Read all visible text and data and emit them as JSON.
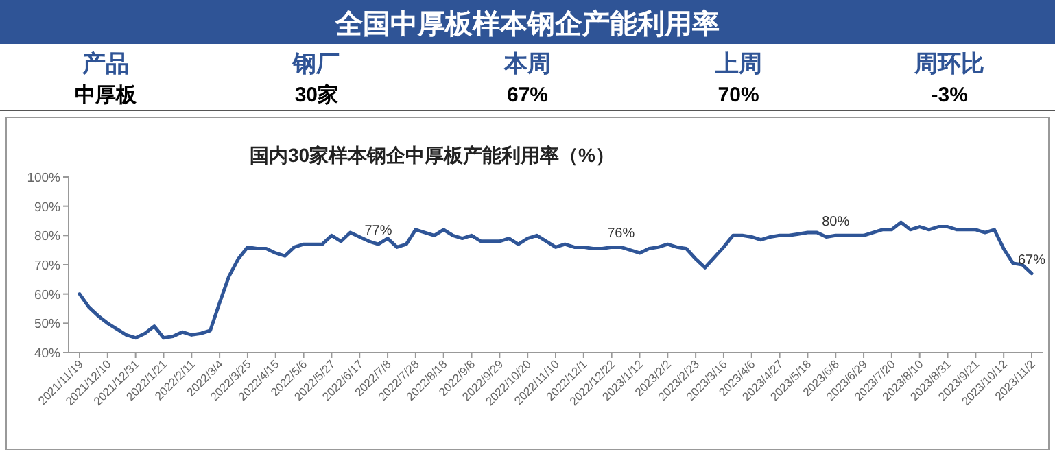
{
  "chart_data": [
    {
      "type": "other",
      "title": "全国中厚板样本钢企产能利用率",
      "annotations": [
        "产品",
        "钢厂",
        "本周",
        "上周",
        "周环比",
        "中厚板",
        "30家",
        "67%",
        "70%",
        "-3%"
      ]
    },
    {
      "type": "line",
      "title": "国内30家样本钢企中厚板产能利用率（%）",
      "categories": [
        "2021/11/19",
        null,
        null,
        "2021/12/10",
        null,
        null,
        "2021/12/31",
        null,
        null,
        "2022/1/21",
        null,
        null,
        "2022/2/11",
        null,
        null,
        "2022/3/4",
        null,
        null,
        "2022/3/25",
        null,
        null,
        "2022/4/15",
        null,
        null,
        "2022/5/6",
        null,
        null,
        "2022/5/27",
        null,
        null,
        "2022/6/17",
        null,
        null,
        "2022/7/8",
        null,
        null,
        "2022/7/28",
        null,
        null,
        "2022/8/18",
        null,
        null,
        "2022/9/8",
        null,
        null,
        "2022/9/29",
        null,
        null,
        "2022/10/20",
        null,
        null,
        "2022/11/10",
        null,
        null,
        "2022/12/1",
        null,
        null,
        "2022/12/22",
        null,
        null,
        "2023/1/12",
        null,
        null,
        "2023/2/2",
        null,
        null,
        "2023/2/23",
        null,
        null,
        "2023/3/16",
        null,
        null,
        "2023/4/6",
        null,
        null,
        "2023/4/27",
        null,
        null,
        "2023/5/18",
        null,
        null,
        "2023/6/8",
        null,
        null,
        "2023/6/29",
        null,
        null,
        "2023/7/20",
        null,
        null,
        "2023/8/10",
        null,
        null,
        "2023/8/31",
        null,
        null,
        "2023/9/21",
        null,
        null,
        "2023/10/12",
        null,
        null,
        "2023/11/2"
      ],
      "series": [
        {
          "color": "#2f5597",
          "values": [
            60,
            55.5,
            52.5,
            50,
            48,
            46,
            45,
            46.5,
            49,
            45,
            45.5,
            47,
            46,
            46.5,
            47.5,
            57,
            66,
            72,
            76,
            75.5,
            75.5,
            74,
            73,
            76,
            77,
            77,
            77,
            80,
            78,
            81,
            79.5,
            78,
            77,
            79,
            76,
            77,
            82,
            81,
            80,
            82,
            80,
            79,
            80,
            78,
            78,
            78,
            79,
            77,
            79,
            80,
            78,
            76,
            77,
            76,
            76,
            75.5,
            75.5,
            76,
            76,
            75,
            74,
            75.5,
            76,
            77,
            76,
            75.5,
            72,
            69,
            72.5,
            76,
            80,
            80,
            79.5,
            78.5,
            79.5,
            80,
            80,
            80.5,
            81,
            81,
            79.5,
            80,
            80,
            80,
            80,
            81,
            82,
            82,
            84.5,
            82,
            83,
            82,
            83,
            83,
            82,
            82,
            82,
            81,
            82,
            75.5,
            70.5,
            70,
            67
          ],
          "value_labels": [
            null,
            null,
            null,
            null,
            null,
            null,
            null,
            null,
            null,
            null,
            null,
            null,
            null,
            null,
            null,
            null,
            null,
            null,
            null,
            null,
            null,
            null,
            null,
            null,
            null,
            null,
            null,
            null,
            null,
            null,
            null,
            null,
            "77%",
            null,
            null,
            null,
            null,
            null,
            null,
            null,
            null,
            null,
            null,
            null,
            null,
            null,
            null,
            null,
            null,
            null,
            null,
            null,
            null,
            null,
            null,
            null,
            null,
            null,
            "76%",
            null,
            null,
            null,
            null,
            null,
            null,
            null,
            null,
            null,
            null,
            null,
            null,
            null,
            null,
            null,
            null,
            null,
            null,
            null,
            null,
            null,
            null,
            "80%",
            null,
            null,
            null,
            null,
            null,
            null,
            null,
            null,
            null,
            null,
            null,
            null,
            null,
            null,
            null,
            null,
            null,
            null,
            null,
            null,
            "67%"
          ]
        }
      ],
      "ylim": [
        40,
        100
      ],
      "yticks": [
        {
          "value": 40,
          "label": "40%"
        },
        {
          "value": 50,
          "label": "50%"
        },
        {
          "value": 60,
          "label": "60%"
        },
        {
          "value": 70,
          "label": "70%"
        },
        {
          "value": 80,
          "label": "80%"
        },
        {
          "value": 90,
          "label": "90%"
        },
        {
          "value": 100,
          "label": "100%"
        }
      ],
      "grid": false,
      "marker": "none",
      "line_style": "solid"
    }
  ]
}
